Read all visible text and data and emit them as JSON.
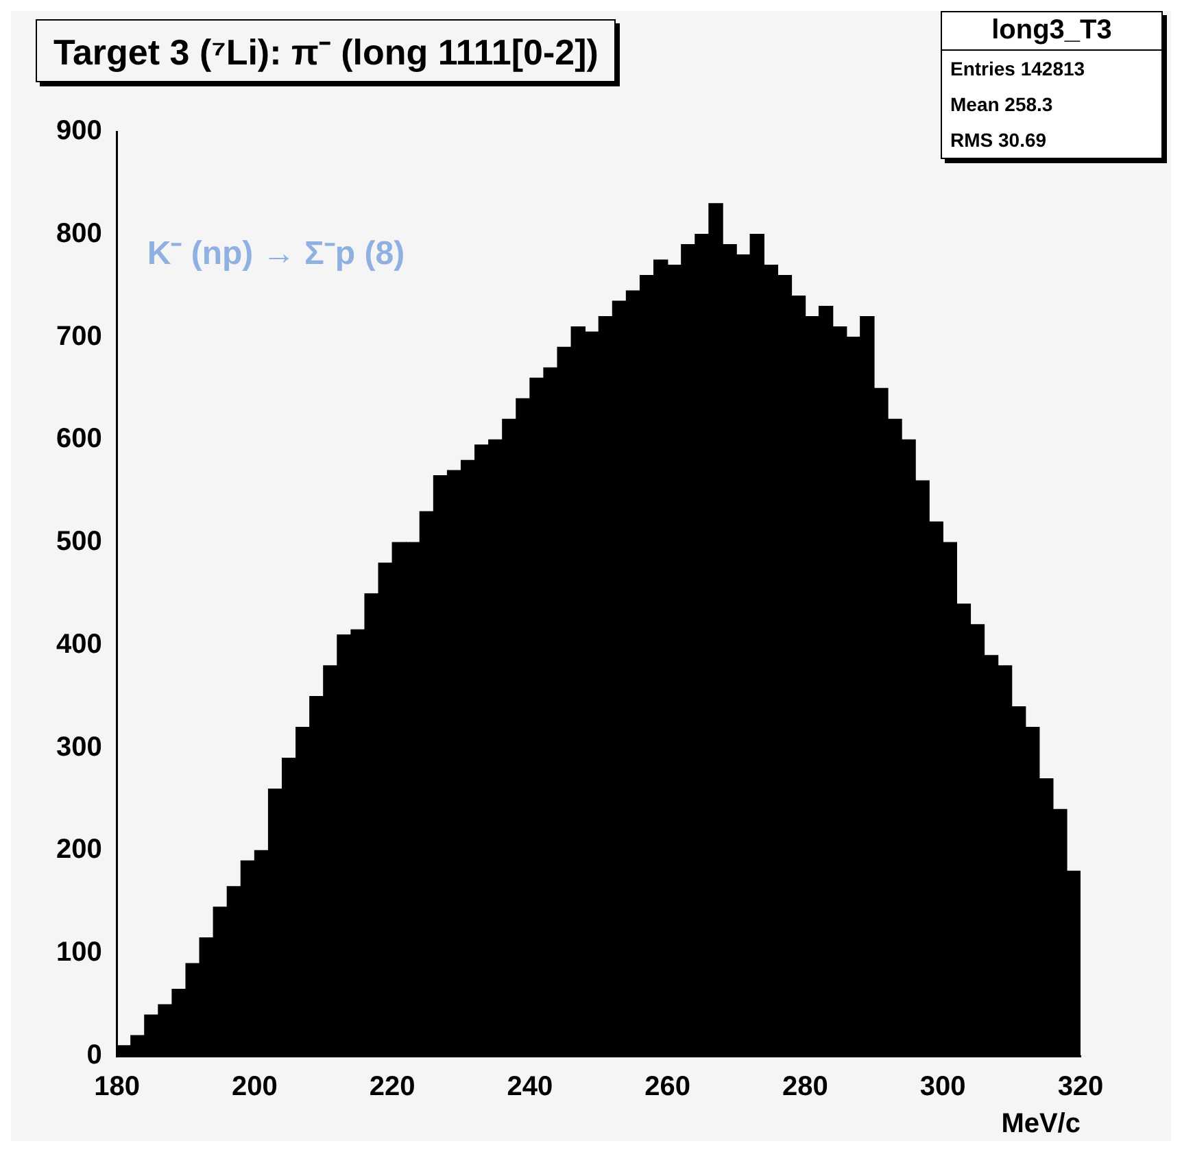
{
  "chart_data": {
    "type": "histogram",
    "title": "Target 3 (⁷Li): π⁻ (long 1111[0-2])",
    "xlabel": "MeV/c",
    "bins": [
      180,
      182,
      184,
      186,
      188,
      190,
      192,
      194,
      196,
      198,
      200,
      202,
      204,
      206,
      208,
      210,
      212,
      214,
      216,
      218,
      220,
      222,
      224,
      226,
      228,
      230,
      232,
      234,
      236,
      238,
      240,
      242,
      244,
      246,
      248,
      250,
      252,
      254,
      256,
      258,
      260,
      262,
      264,
      266,
      268,
      270,
      272,
      274,
      276,
      278,
      280,
      282,
      284,
      286,
      288,
      290,
      292,
      294,
      296,
      298,
      300,
      302,
      304,
      306,
      308,
      310,
      312,
      314,
      316,
      318,
      320
    ],
    "values": [
      10,
      20,
      40,
      50,
      65,
      90,
      115,
      145,
      165,
      190,
      200,
      260,
      290,
      320,
      350,
      380,
      410,
      415,
      450,
      480,
      500,
      500,
      530,
      565,
      570,
      580,
      595,
      600,
      620,
      640,
      660,
      670,
      690,
      710,
      705,
      720,
      735,
      745,
      760,
      775,
      770,
      790,
      800,
      830,
      790,
      780,
      800,
      770,
      760,
      740,
      720,
      730,
      710,
      700,
      720,
      650,
      620,
      600,
      560,
      520,
      500,
      440,
      420,
      390,
      380,
      340,
      320,
      270,
      240,
      180
    ],
    "color": "#000000",
    "xlim": [
      180,
      320
    ],
    "xticks": [
      180,
      200,
      220,
      240,
      260,
      280,
      300,
      320
    ],
    "ylim": [
      0,
      900
    ],
    "yticks": [
      0,
      100,
      200,
      300,
      400,
      500,
      600,
      700,
      800,
      900
    ],
    "grid": false,
    "legend": false,
    "annotations": [
      "K⁻ (np) → Σ⁻p (8)",
      "long3_T3",
      "Entries 142813",
      "Mean 258.3",
      "RMS 30.69"
    ]
  }
}
